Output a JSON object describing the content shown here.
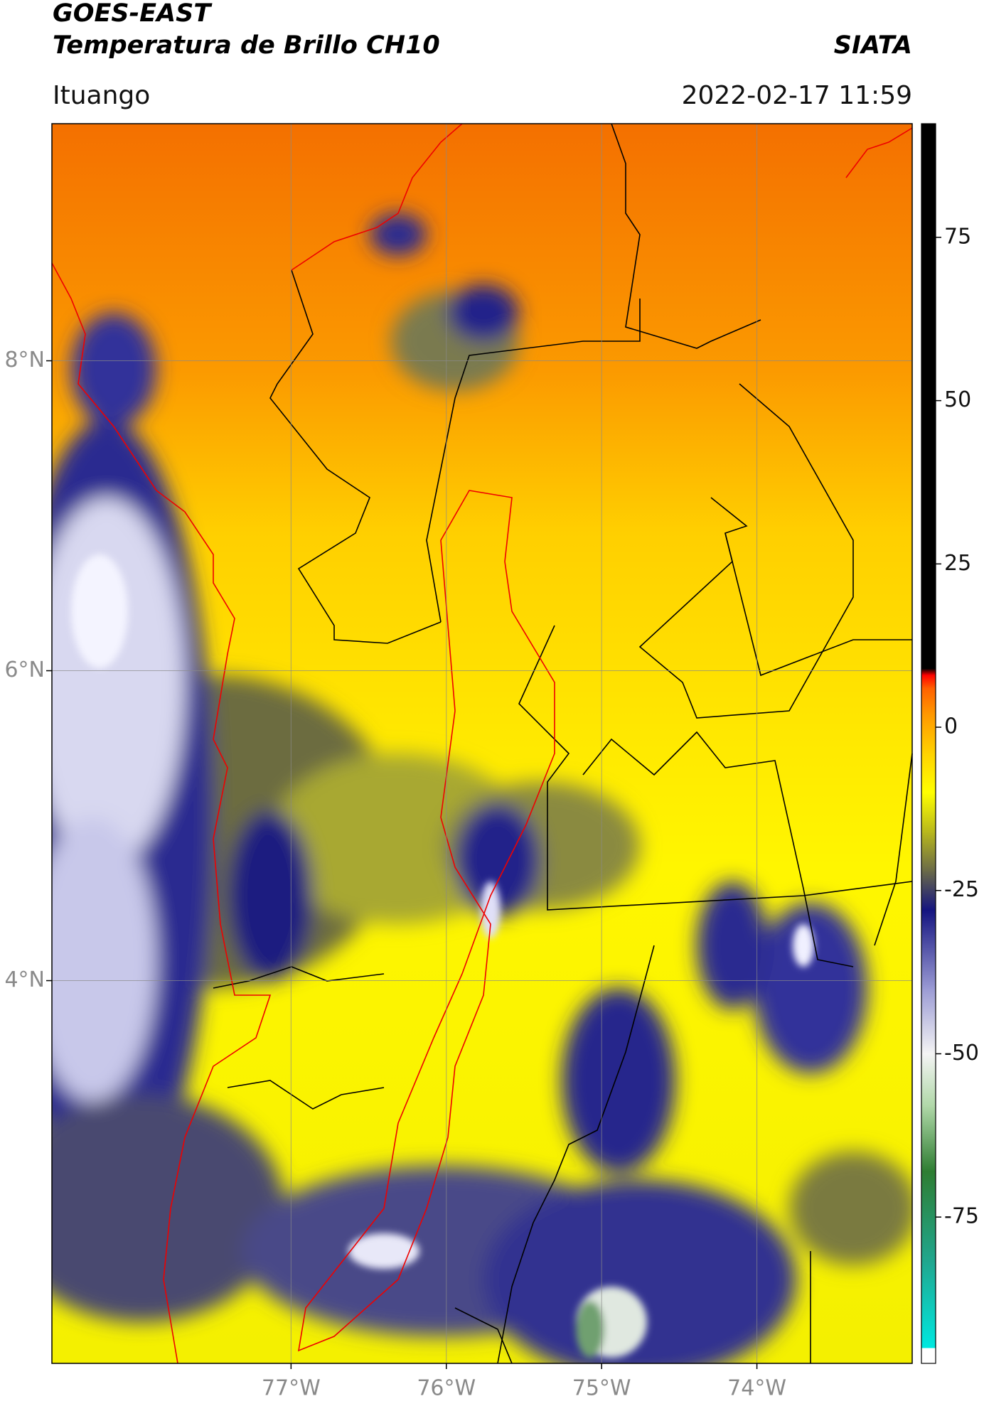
{
  "chart_data": {
    "type": "map",
    "title": "GOES-EAST",
    "subtitle": "Temperatura de Brillo CH10",
    "source": "SIATA",
    "location": "Ituango",
    "datetime": "2022-02-17 11:59",
    "xlim": [
      -78.54,
      -73.0
    ],
    "ylim": [
      1.53,
      9.53
    ],
    "xticks": [
      {
        "value": -77,
        "label": "77°W"
      },
      {
        "value": -76,
        "label": "76°W"
      },
      {
        "value": -75,
        "label": "75°W"
      },
      {
        "value": -74,
        "label": "74°W"
      }
    ],
    "yticks": [
      {
        "value": 8,
        "label": "8°N"
      },
      {
        "value": 6,
        "label": "6°N"
      },
      {
        "value": 4,
        "label": "4°N"
      }
    ],
    "grid": true,
    "colorbar": {
      "lim": [
        -97.4,
        92.4
      ],
      "ticks": [
        75,
        50,
        25,
        0,
        -25,
        -50,
        -75
      ],
      "colormap": [
        {
          "value": -97.4,
          "color": "#ffffff"
        },
        {
          "value": -95,
          "color": "#ffffff"
        },
        {
          "value": -95,
          "color": "#00e8e0"
        },
        {
          "value": -82,
          "color": "#20a890"
        },
        {
          "value": -68,
          "color": "#2e7d32"
        },
        {
          "value": -58,
          "color": "#b0d8a8"
        },
        {
          "value": -50,
          "color": "#f4f4f4"
        },
        {
          "value": -40,
          "color": "#9a9ad4"
        },
        {
          "value": -28,
          "color": "#141480"
        },
        {
          "value": -22,
          "color": "#6a6a48"
        },
        {
          "value": -16,
          "color": "#b8b81c"
        },
        {
          "value": -10,
          "color": "#ffff00"
        },
        {
          "value": -4,
          "color": "#ffd200"
        },
        {
          "value": 2,
          "color": "#ff9800"
        },
        {
          "value": 6,
          "color": "#ff6000"
        },
        {
          "value": 8,
          "color": "#ff0000"
        },
        {
          "value": 9,
          "color": "#000000"
        },
        {
          "value": 92.4,
          "color": "#000000"
        }
      ]
    }
  }
}
